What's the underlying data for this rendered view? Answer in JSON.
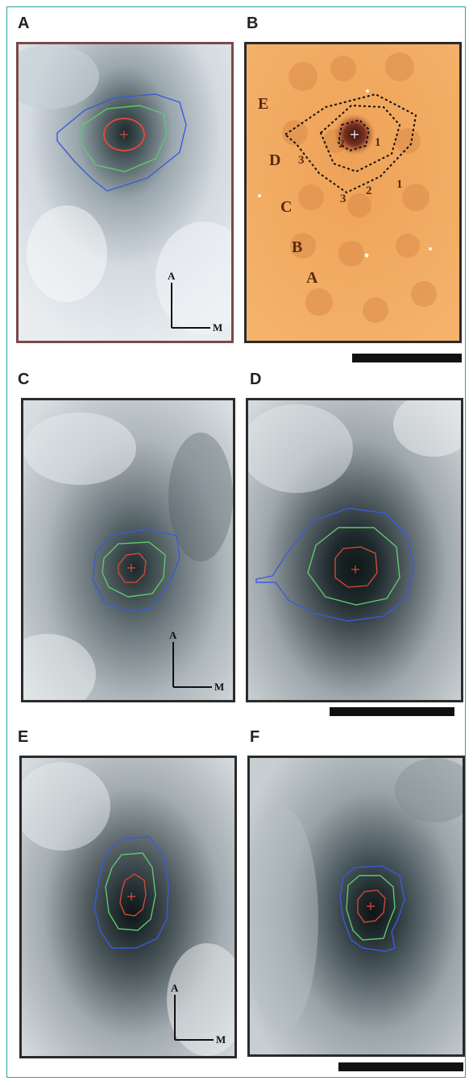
{
  "panels": {
    "a": {
      "label": "A"
    },
    "b": {
      "label": "B"
    },
    "c": {
      "label": "C"
    },
    "d": {
      "label": "D"
    },
    "e": {
      "label": "E"
    },
    "f": {
      "label": "F"
    }
  },
  "orientation": {
    "anterior": "A",
    "medial": "M"
  },
  "panel_b_overlay": {
    "region_letters": [
      "E",
      "D",
      "C",
      "B",
      "A"
    ],
    "contour_numbers": [
      "1",
      "2",
      "3",
      "1",
      "2",
      "3"
    ]
  },
  "colors": {
    "inner_contour": "#e0483a",
    "middle_contour": "#5fc86f",
    "outer_contour": "#3b5bd8",
    "panel_a_border": "#7a4a48",
    "panel_border": "#2b2b2b",
    "frame_border": "#2aa39b",
    "tissue_b": "#f0a858"
  }
}
